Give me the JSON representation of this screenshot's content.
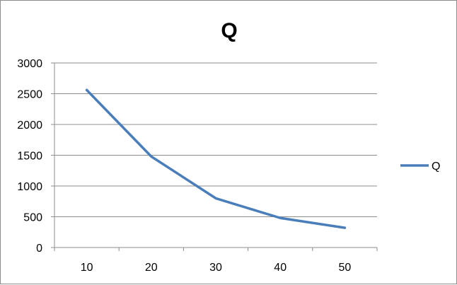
{
  "chart_data": {
    "type": "line",
    "title": "Q",
    "xlabel": "",
    "ylabel": "",
    "categories": [
      "10",
      "20",
      "30",
      "40",
      "50"
    ],
    "series": [
      {
        "name": "Q",
        "values": [
          2560,
          1480,
          800,
          480,
          320
        ],
        "color": "#4a7ebb"
      }
    ],
    "ylim": [
      0,
      3000
    ],
    "yticks": [
      "0",
      "500",
      "1000",
      "1500",
      "2000",
      "2500",
      "3000"
    ],
    "grid": "horizontal",
    "legend": "right"
  }
}
